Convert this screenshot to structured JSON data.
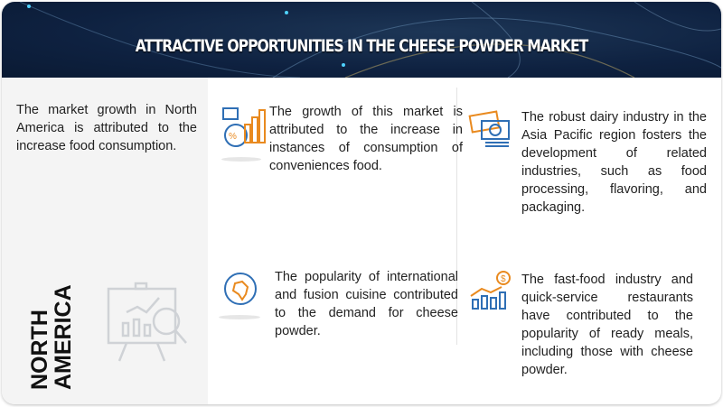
{
  "header": {
    "title": "ATTRACTIVE OPPORTUNITIES IN THE CHEESE POWDER MARKET"
  },
  "left_panel": {
    "text": "The market growth in North America is attributed to the increase food consumption.",
    "region_line1": "NORTH",
    "region_line2": "AMERICA",
    "icon": "presentation-analytics-icon"
  },
  "points": [
    {
      "text": "The growth of this market is attributed to the increase in instances of consumption of conveniences food.",
      "icon": "growth-chart-icon"
    },
    {
      "text": "The robust dairy industry in the Asia Pacific region fosters the development of related industries, such as food processing, flavoring, and packaging.",
      "icon": "money-icon"
    },
    {
      "text": "The popularity of international and fusion cuisine contributed to the demand for cheese powder.",
      "icon": "globe-icon"
    },
    {
      "text": "The fast-food industry and quick-service restaurants have contributed to the popularity of ready meals, including those with cheese powder.",
      "icon": "dollar-growth-icon"
    }
  ],
  "colors": {
    "header": "#0e2140",
    "accent_blue": "#2f6fb5",
    "accent_orange": "#e98a1f"
  }
}
